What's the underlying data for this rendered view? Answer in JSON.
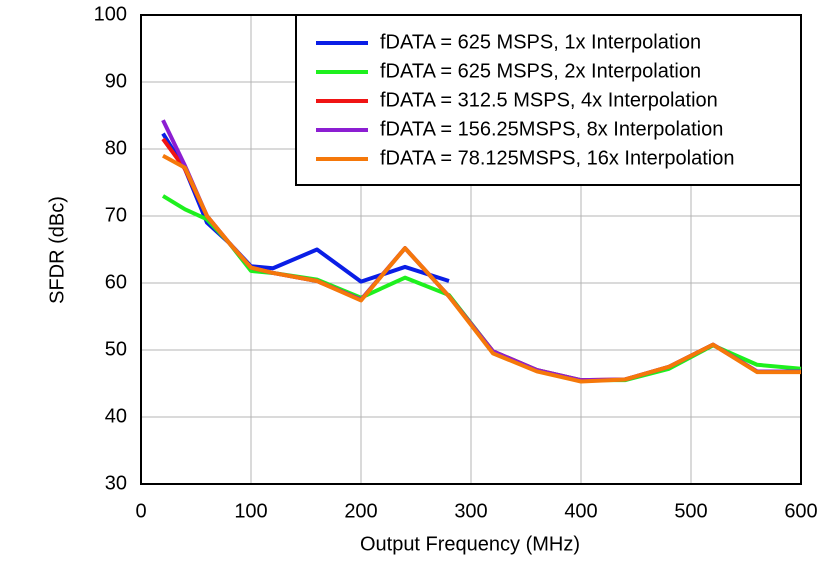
{
  "chart_data": {
    "type": "line",
    "x_label": "Output Frequency (MHz)",
    "y_label": "SFDR (dBc)",
    "x": [
      20,
      40,
      60,
      80,
      100,
      120,
      160,
      200,
      240,
      280,
      320,
      360,
      400,
      440,
      480,
      520,
      560,
      600
    ],
    "series": [
      {
        "name": "fDATA = 625 MSPS, 1x Interpolation",
        "color": "#0a1ee6",
        "values": [
          82.3,
          77,
          69,
          66,
          62.5,
          62.2,
          65,
          60.2,
          62.4,
          60.3,
          null,
          null,
          null,
          null,
          null,
          null,
          null,
          null
        ]
      },
      {
        "name": "fDATA = 625 MSPS, 2x Interpolation",
        "color": "#1ef01e",
        "values": [
          73,
          71,
          69.5,
          66,
          61.8,
          61.5,
          60.5,
          57.8,
          60.8,
          58.2,
          49.8,
          47,
          45.5,
          45.5,
          47.2,
          50.7,
          47.8,
          47.2
        ]
      },
      {
        "name": "fDATA = 312.5 MSPS, 4x Interpolation",
        "color": "#f01414",
        "values": [
          81.5,
          77,
          70,
          66,
          62.3,
          61.5,
          60.3,
          57.5,
          65.2,
          58,
          49.8,
          47,
          45.5,
          45.6,
          47.5,
          50.8,
          46.8,
          46.8
        ]
      },
      {
        "name": "fDATA = 156.25MSPS, 8x Interpolation",
        "color": "#8c1ed2",
        "values": [
          84.3,
          77.5,
          70,
          66,
          62.3,
          61.5,
          60.3,
          57.5,
          65.2,
          58,
          49.8,
          47,
          45.5,
          45.6,
          47.5,
          50.8,
          46.8,
          46.8
        ]
      },
      {
        "name": "fDATA = 78.125MSPS, 16x Interpolation",
        "color": "#f5780a",
        "values": [
          79,
          77.2,
          70,
          66,
          62.3,
          61.5,
          60.3,
          57.4,
          65.2,
          58,
          49.5,
          46.8,
          45.3,
          45.6,
          47.5,
          50.8,
          46.7,
          46.7
        ]
      }
    ],
    "xlim": [
      0,
      600
    ],
    "xticks": [
      0,
      100,
      200,
      300,
      400,
      500,
      600
    ],
    "ylim": [
      30,
      100
    ],
    "yticks": [
      30,
      40,
      50,
      60,
      70,
      80,
      90,
      100
    ],
    "grid": true,
    "legend": "upper right"
  }
}
